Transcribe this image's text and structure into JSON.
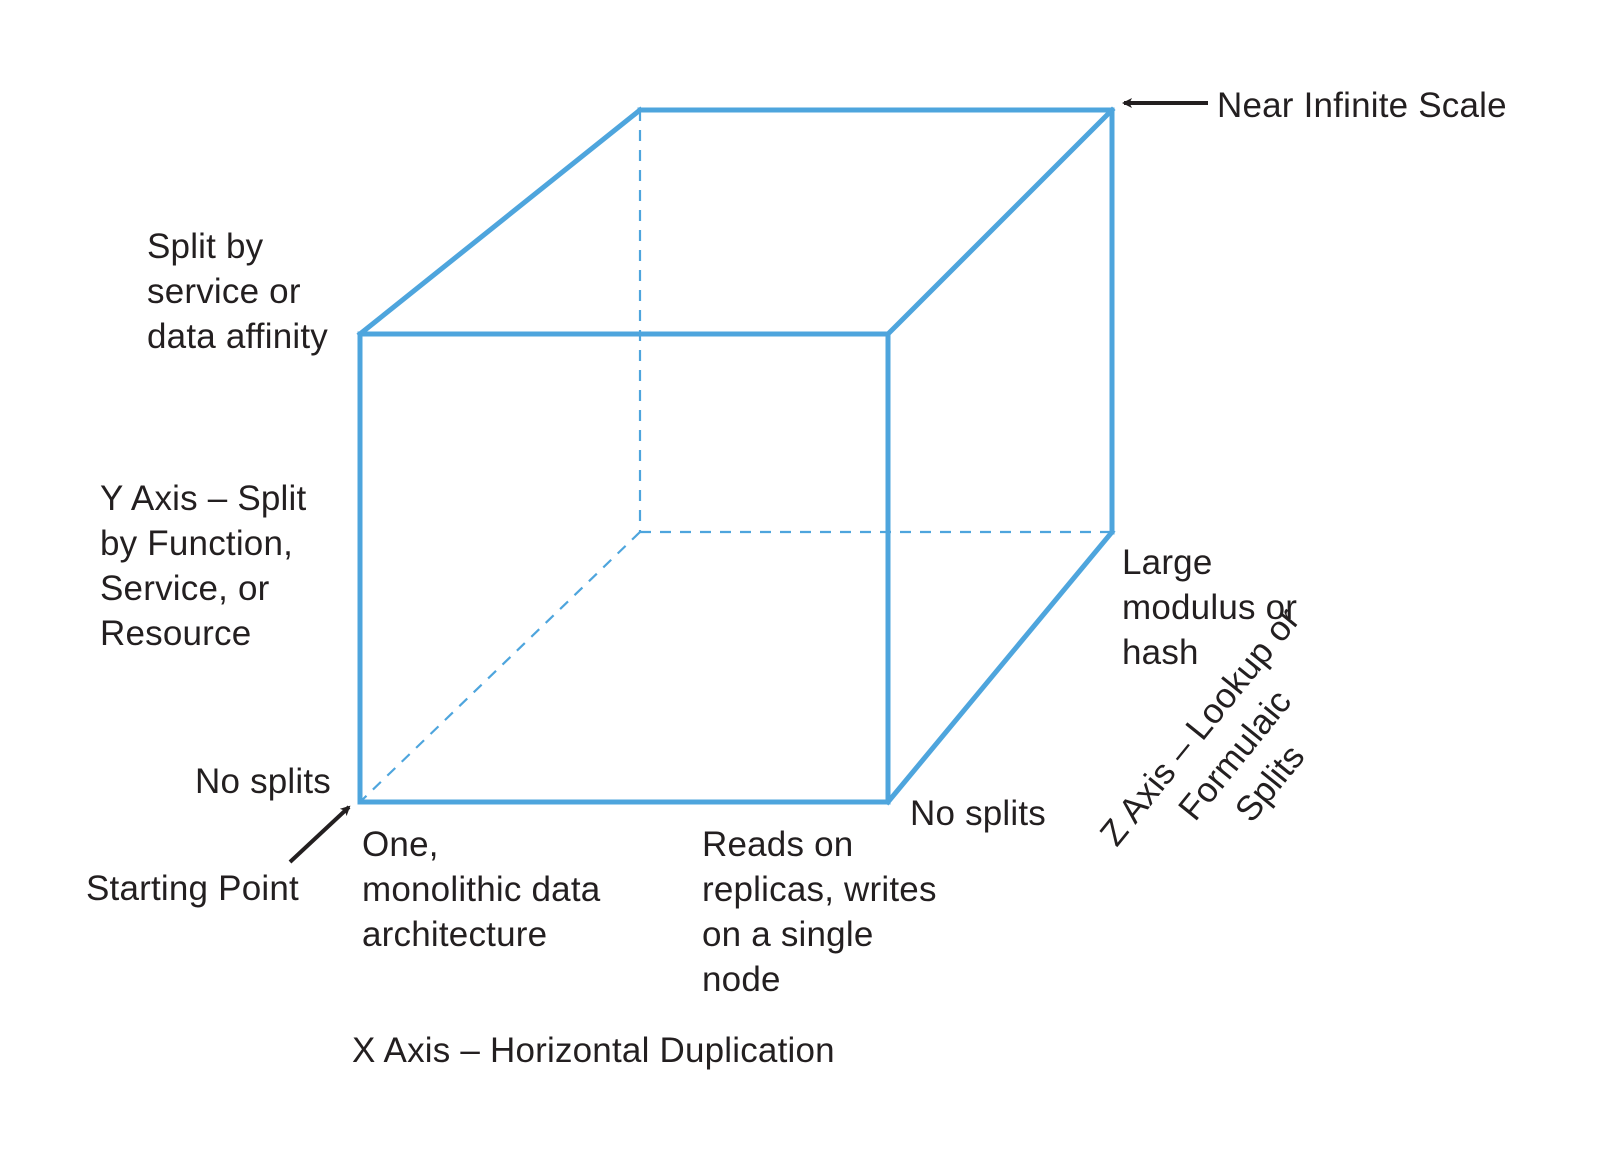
{
  "colors": {
    "cube_edge": "#4ea5dd",
    "text": "#231f20",
    "arrow": "#231f20"
  },
  "icons": {
    "near_infinite_arrow": "arrow-left-icon",
    "starting_point_arrow": "arrow-up-right-icon"
  },
  "labels": {
    "near_infinite_scale": "Near Infinite Scale",
    "y_top": "Split by\nservice or\ndata affinity",
    "y_axis": "Y Axis – Split\nby Function,\nService, or\nResource",
    "no_splits_origin": "No splits",
    "starting_point": "Starting Point",
    "x_origin": "One,\nmonolithic data\narchitecture",
    "x_end": "Reads on\nreplicas, writes\non a single\nnode",
    "no_splits_z": "No splits",
    "z_end": "Large\nmodulus or\nhash",
    "x_axis": "X Axis – Horizontal Duplication",
    "z_axis": "Z Axis – Lookup or Formulaic\nSplits"
  }
}
